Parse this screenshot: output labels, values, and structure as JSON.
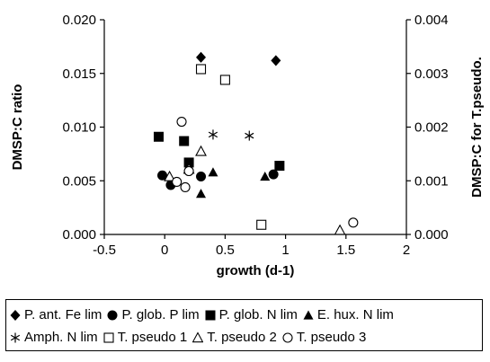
{
  "chart_data": {
    "type": "scatter",
    "xlabel": "growth (d-1)",
    "ylabel": "DMSP:C ratio",
    "y2label": "DMSP:C for T.pseudo.",
    "xlim": [
      -0.5,
      2
    ],
    "ylim": [
      0,
      0.02
    ],
    "y2lim": [
      0,
      0.004
    ],
    "xticks": [
      "-0.5",
      "0",
      "0.5",
      "1",
      "1.5",
      "2"
    ],
    "yticks": [
      "0.000",
      "0.005",
      "0.010",
      "0.015",
      "0.020"
    ],
    "y2ticks": [
      "0.000",
      "0.001",
      "0.002",
      "0.003",
      "0.004"
    ],
    "grid": false,
    "legend_position": "bottom",
    "series": [
      {
        "name": "P. ant. Fe lim",
        "marker": "diamond",
        "axis": "left",
        "points": [
          [
            0.3,
            0.0165
          ],
          [
            0.92,
            0.0162
          ]
        ]
      },
      {
        "name": "P. glob. P lim",
        "marker": "circle-filled",
        "axis": "left",
        "points": [
          [
            -0.02,
            0.0055
          ],
          [
            0.05,
            0.0046
          ],
          [
            0.2,
            0.0059
          ],
          [
            0.3,
            0.0054
          ],
          [
            0.9,
            0.0056
          ]
        ]
      },
      {
        "name": "P. glob. N lim",
        "marker": "square-filled",
        "axis": "left",
        "points": [
          [
            -0.05,
            0.0091
          ],
          [
            0.16,
            0.0087
          ],
          [
            0.2,
            0.0067
          ],
          [
            0.95,
            0.0064
          ]
        ]
      },
      {
        "name": "E. hux. N lim",
        "marker": "triangle-filled",
        "axis": "left",
        "points": [
          [
            0.3,
            0.0038
          ],
          [
            0.4,
            0.0058
          ],
          [
            0.83,
            0.0054
          ]
        ]
      },
      {
        "name": "Amph. N lim",
        "marker": "asterisk",
        "axis": "left",
        "points": [
          [
            0.4,
            0.0093
          ],
          [
            0.7,
            0.0092
          ]
        ]
      },
      {
        "name": "T. pseudo 1",
        "marker": "square-open",
        "axis": "right",
        "points": [
          [
            0.3,
            0.00308
          ],
          [
            0.5,
            0.00288
          ],
          [
            0.8,
            0.00018
          ]
        ]
      },
      {
        "name": "T. pseudo 2",
        "marker": "triangle-open",
        "axis": "right",
        "points": [
          [
            0.04,
            0.00108
          ],
          [
            0.2,
            0.00122
          ],
          [
            0.3,
            0.00155
          ],
          [
            1.45,
            8e-05
          ]
        ]
      },
      {
        "name": "T. pseudo 3",
        "marker": "circle-open",
        "axis": "right",
        "points": [
          [
            0.14,
            0.0021
          ],
          [
            0.1,
            0.00098
          ],
          [
            0.17,
            0.00088
          ],
          [
            0.2,
            0.00118
          ],
          [
            1.56,
            0.00022
          ]
        ]
      }
    ]
  }
}
